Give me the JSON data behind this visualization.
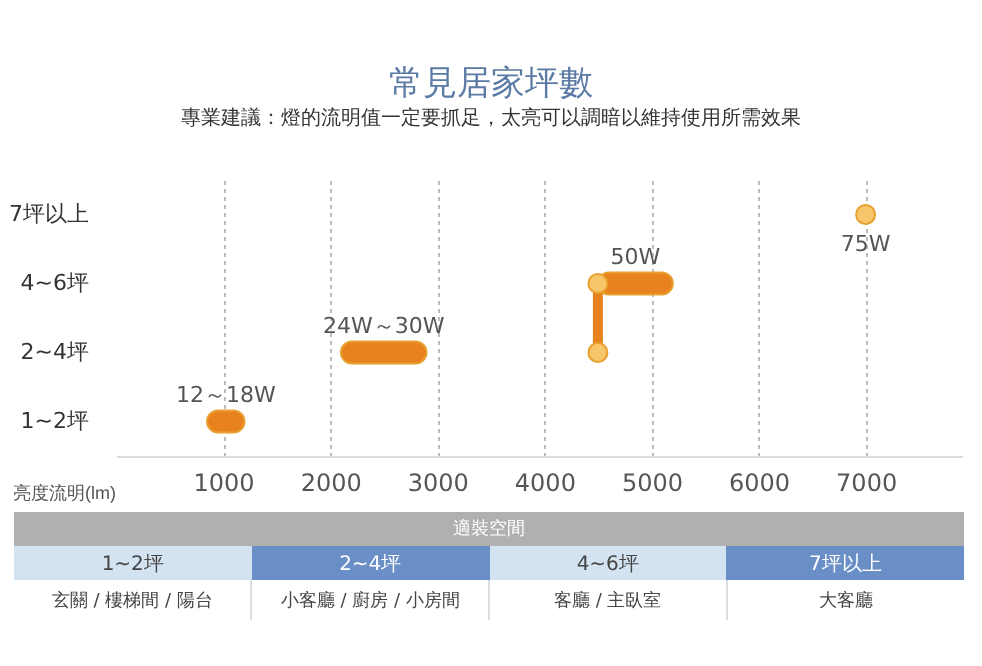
{
  "chart_data": {
    "type": "bar",
    "orientation": "horizontal",
    "title": "常見居家坪數",
    "subtitle": "專業建議：燈的流明值一定要抓足，太亮可以調暗以維持使用所需效果",
    "xlabel": "亮度流明(lm)",
    "categories": [
      "7坪以上",
      "4~6坪",
      "2~4坪",
      "1~2坪"
    ],
    "series": [
      {
        "color": "#e8821e",
        "base": [
          null,
          4500,
          2100,
          850
        ],
        "values": [
          null,
          700,
          800,
          350
        ]
      },
      {
        "type": "line",
        "color": "#e8821e",
        "values": [
          null,
          4500,
          4500,
          null
        ]
      },
      {
        "type": "scatter",
        "color": "#f8c66a",
        "values": [
          7000,
          null,
          null,
          null
        ]
      }
    ],
    "marker": "circle",
    "xlim": [
      0,
      7900
    ],
    "xticks": [
      1000,
      2000,
      3000,
      4000,
      5000,
      6000,
      7000
    ],
    "grid": "x",
    "annotations": [
      {
        "text": "75W",
        "x": 7000,
        "y": "7坪以上"
      },
      {
        "text": "50W",
        "y": "4~6坪"
      },
      {
        "text": "24W～30W",
        "y": "2~4坪"
      },
      {
        "text": "12～18W",
        "y": "1~2坪"
      },
      "適裝空間",
      "玄關 / 樓梯間 / 陽台",
      "小客廳 / 廚房 / 小房間",
      "客廳 / 主臥室",
      "大客廳"
    ]
  }
}
